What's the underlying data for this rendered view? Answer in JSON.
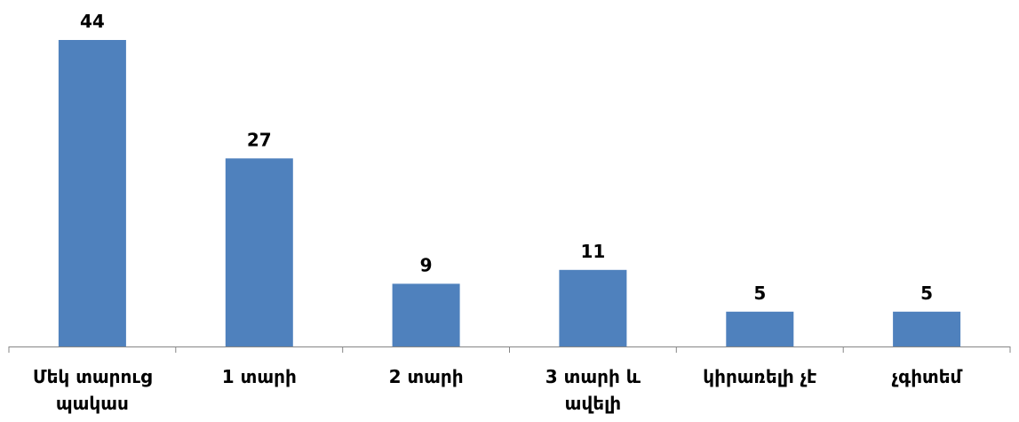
{
  "chart_data": {
    "type": "bar",
    "categories": [
      [
        "Մեկ տարուց",
        "պակաս"
      ],
      [
        "1 տարի"
      ],
      [
        "2 տարի"
      ],
      [
        "3 տարի և",
        "ավելի"
      ],
      [
        "կիրառելի չէ"
      ],
      [
        "չգիտեմ"
      ]
    ],
    "values": [
      44,
      27,
      9,
      11,
      5,
      5
    ],
    "data_labels": [
      "44",
      "27",
      "9",
      "11",
      "5",
      "5"
    ],
    "title": "",
    "xlabel": "",
    "ylabel": "",
    "ylim": [
      0,
      44
    ],
    "grid": false,
    "legend": "none",
    "bar_color": "#4f81bd",
    "axis_color": "#868686"
  }
}
